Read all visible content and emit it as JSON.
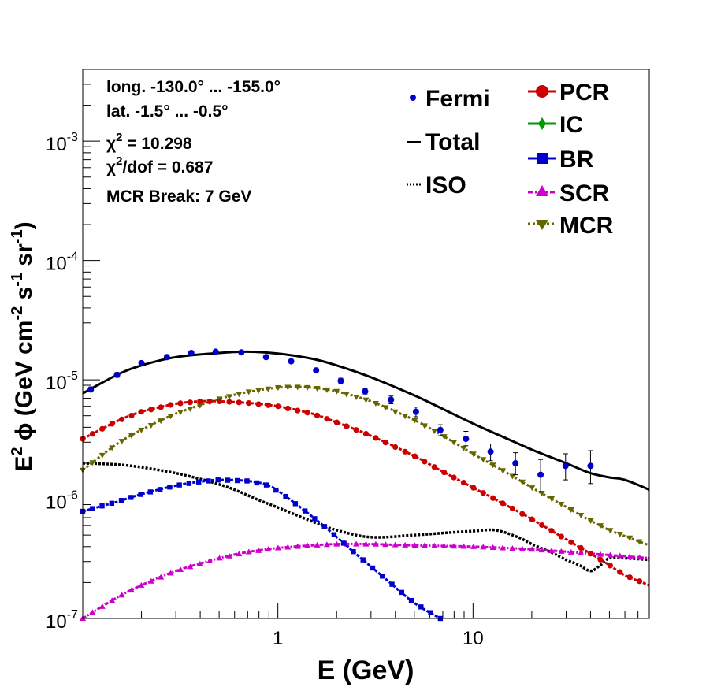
{
  "chart_data": {
    "type": "line",
    "xscale": "log",
    "yscale": "log",
    "xlim": [
      0.1,
      80
    ],
    "ylim": [
      1e-07,
      0.004
    ],
    "xlabel": "E (GeV)",
    "ylabel_parts": {
      "e2": "E",
      "sup2": "2",
      "phi": "ϕ",
      "open": "(GeV cm",
      "supm2": "-2",
      "s": " s",
      "supm1a": "-1",
      "sr": " sr",
      "supm1b": "-1",
      "close": ")"
    },
    "x_tick_labels": [
      {
        "x": 1,
        "label": "1"
      },
      {
        "x": 10,
        "label": "10"
      }
    ],
    "y_tick_labels": [
      {
        "y": 1e-07,
        "base": "10",
        "exp": "-7"
      },
      {
        "y": 1e-06,
        "base": "10",
        "exp": "-6"
      },
      {
        "y": 1e-05,
        "base": "10",
        "exp": "-5"
      },
      {
        "y": 0.0001,
        "base": "10",
        "exp": "-4"
      },
      {
        "y": 0.001,
        "base": "10",
        "exp": "-3"
      }
    ],
    "annotations": {
      "longitude": "long. -130.0° ... -155.0°",
      "latitude": "lat. -1.5° ... -0.5°",
      "chi2_label": "χ",
      "chi2_sup": "2",
      "chi2_value": " = 10.298",
      "chi2dof_sup": "2",
      "chi2dof_value": "/dof = 0.687",
      "break": "MCR Break:  7 GeV"
    },
    "legend": [
      {
        "key": "fermi",
        "label": "Fermi"
      },
      {
        "key": "total",
        "label": "Total"
      },
      {
        "key": "iso",
        "label": "ISO"
      },
      {
        "key": "pcr",
        "label": "PCR"
      },
      {
        "key": "ic",
        "label": "IC"
      },
      {
        "key": "br",
        "label": "BR"
      },
      {
        "key": "scr",
        "label": "SCR"
      },
      {
        "key": "mcr",
        "label": "MCR"
      }
    ],
    "colors": {
      "fermi": "#0000cc",
      "total": "#000000",
      "iso": "#000000",
      "pcr": "#cc0000",
      "ic": "#009900",
      "br": "#0000cc",
      "scr": "#cc00cc",
      "mcr": "#666600"
    },
    "fermi": {
      "x": [
        0.11,
        0.15,
        0.2,
        0.27,
        0.36,
        0.48,
        0.65,
        0.87,
        1.17,
        1.57,
        2.1,
        2.8,
        3.8,
        5.1,
        6.8,
        9.2,
        12.3,
        16.5,
        22.2,
        29.8,
        40,
        53.7,
        72
      ],
      "y": [
        8.3e-06,
        1.1e-05,
        1.38e-05,
        1.55e-05,
        1.68e-05,
        1.72e-05,
        1.7e-05,
        1.55e-05,
        1.43e-05,
        1.2e-05,
        9.8e-06,
        8e-06,
        6.8e-06,
        5.4e-06,
        3.8e-06,
        3.2e-06,
        2.5e-06,
        2e-06,
        1.6e-06,
        1.9e-06,
        1.9e-06,
        null,
        null
      ],
      "err_lo": [
        7.9e-06,
        1.05e-05,
        1.33e-05,
        1.5e-05,
        1.63e-05,
        1.67e-05,
        1.65e-05,
        1.5e-05,
        1.38e-05,
        1.15e-05,
        9.3e-06,
        7.6e-06,
        6.3e-06,
        4.9e-06,
        3.4e-06,
        2.8e-06,
        2.1e-06,
        1.6e-06,
        1.15e-06,
        1.45e-06,
        1.35e-06,
        null,
        null
      ],
      "err_hi": [
        8.7e-06,
        1.15e-05,
        1.43e-05,
        1.6e-05,
        1.73e-05,
        1.77e-05,
        1.75e-05,
        1.6e-05,
        1.48e-05,
        1.25e-05,
        1.03e-05,
        8.4e-06,
        7.3e-06,
        5.9e-06,
        4.2e-06,
        3.7e-06,
        2.9e-06,
        2.45e-06,
        2.15e-06,
        2.4e-06,
        2.55e-06,
        null,
        null
      ]
    },
    "series": [
      {
        "name": "Total",
        "key": "total",
        "x": [
          0.1,
          0.15,
          0.2,
          0.3,
          0.5,
          0.7,
          1.0,
          1.5,
          2.0,
          3.0,
          5.0,
          7.0,
          10,
          15,
          20,
          30,
          40,
          50,
          60,
          80
        ],
        "y": [
          7.7e-06,
          1.1e-05,
          1.32e-05,
          1.55e-05,
          1.68e-05,
          1.72e-05,
          1.66e-05,
          1.5e-05,
          1.32e-05,
          1.05e-05,
          7.4e-06,
          5.7e-06,
          4.3e-06,
          3.2e-06,
          2.6e-06,
          2e-06,
          1.65e-06,
          1.52e-06,
          1.45e-06,
          1.2e-06
        ]
      },
      {
        "name": "ISO",
        "key": "iso",
        "x": [
          0.1,
          0.15,
          0.2,
          0.3,
          0.45,
          0.6,
          0.8,
          1.0,
          1.5,
          2.0,
          3.0,
          5.0,
          7.0,
          10,
          13,
          17,
          20,
          25,
          30,
          35,
          40,
          45,
          50,
          60,
          80
        ],
        "y": [
          2e-06,
          1.95e-06,
          1.85e-06,
          1.65e-06,
          1.4e-06,
          1.2e-06,
          9.8e-07,
          8.5e-07,
          6.5e-07,
          5.5e-07,
          4.8e-07,
          5e-07,
          5.2e-07,
          5.4e-07,
          5.5e-07,
          4.8e-07,
          4.2e-07,
          3.6e-07,
          3.1e-07,
          2.8e-07,
          2.5e-07,
          2.8e-07,
          3.2e-07,
          3.2e-07,
          3.1e-07
        ]
      },
      {
        "name": "PCR",
        "key": "pcr",
        "x": [
          0.1,
          0.15,
          0.2,
          0.3,
          0.4,
          0.5,
          0.7,
          1.0,
          1.5,
          2.0,
          3.0,
          5.0,
          7.0,
          10,
          15,
          20,
          30,
          40,
          50,
          60,
          80
        ],
        "y": [
          3.2e-06,
          4.5e-06,
          5.4e-06,
          6.3e-06,
          6.6e-06,
          6.6e-06,
          6.4e-06,
          6e-06,
          5.2e-06,
          4.4e-06,
          3.4e-06,
          2.3e-06,
          1.7e-06,
          1.25e-06,
          8.8e-07,
          6.8e-07,
          4.6e-07,
          3.5e-07,
          2.8e-07,
          2.3e-07,
          1.9e-07
        ]
      },
      {
        "name": "BR",
        "key": "br",
        "x": [
          0.1,
          0.15,
          0.2,
          0.3,
          0.4,
          0.5,
          0.7,
          0.9,
          1.1,
          1.4,
          1.8,
          2.5,
          3.5,
          5.0,
          6.8
        ],
        "y": [
          7.9e-07,
          9.5e-07,
          1.1e-06,
          1.3e-06,
          1.4e-06,
          1.45e-06,
          1.42e-06,
          1.3e-06,
          1.05e-06,
          7.8e-07,
          5.6e-07,
          3.5e-07,
          2.2e-07,
          1.35e-07,
          1e-07
        ]
      },
      {
        "name": "SCR",
        "key": "scr",
        "x": [
          0.1,
          0.15,
          0.2,
          0.3,
          0.5,
          0.7,
          1.0,
          1.5,
          2.0,
          3.0,
          5.0,
          10,
          20,
          40,
          80
        ],
        "y": [
          1e-07,
          1.5e-07,
          1.9e-07,
          2.5e-07,
          3.2e-07,
          3.6e-07,
          3.9e-07,
          4.1e-07,
          4.2e-07,
          4.2e-07,
          4.1e-07,
          4e-07,
          3.8e-07,
          3.5e-07,
          3.2e-07
        ]
      },
      {
        "name": "MCR",
        "key": "mcr",
        "x": [
          0.1,
          0.15,
          0.2,
          0.3,
          0.5,
          0.7,
          1.0,
          1.2,
          1.5,
          2.0,
          3.0,
          5.0,
          7.0,
          10,
          15,
          20,
          30,
          40,
          50,
          60,
          80
        ],
        "y": [
          1.75e-06,
          2.9e-06,
          3.8e-06,
          5.2e-06,
          6.9e-06,
          7.9e-06,
          8.6e-06,
          8.7e-06,
          8.6e-06,
          8e-06,
          6.6e-06,
          4.6e-06,
          3.4e-06,
          2.4e-06,
          1.65e-06,
          1.25e-06,
          8.6e-07,
          6.6e-07,
          5.5e-07,
          4.9e-07,
          4.1e-07
        ]
      }
    ]
  }
}
